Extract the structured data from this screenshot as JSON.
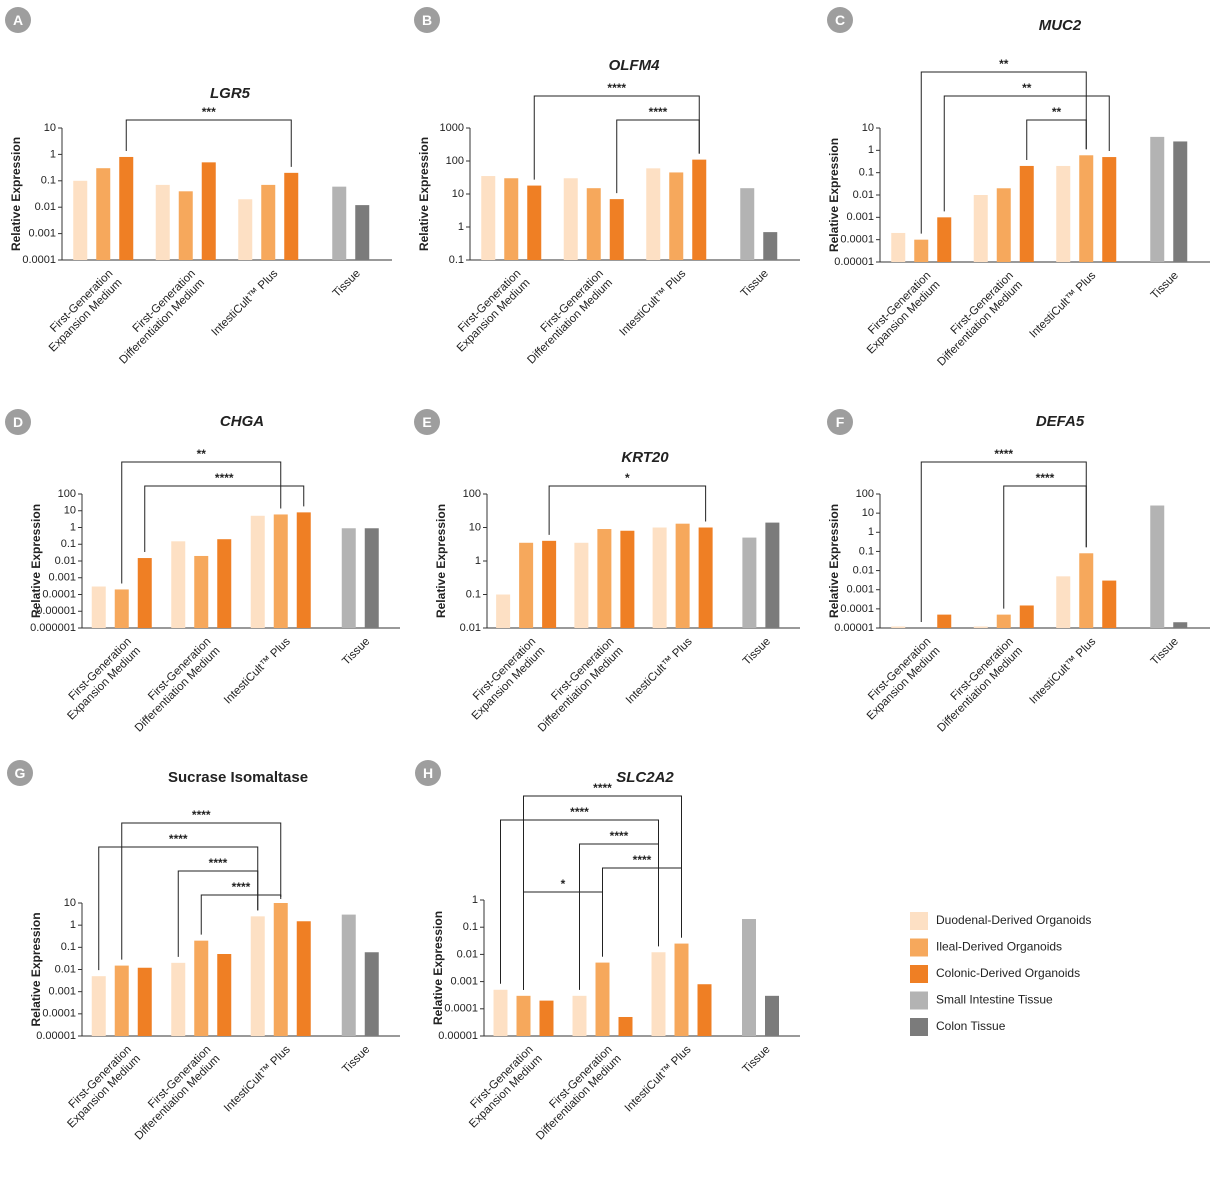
{
  "legend": [
    {
      "name": "Duodenal-Derived Organoids",
      "color": "#fde0c4"
    },
    {
      "name": "Ileal-Derived Organoids",
      "color": "#f6a85c"
    },
    {
      "name": "Colonic-Derived Organoids",
      "color": "#ef7f24"
    },
    {
      "name": "Small Intestine Tissue",
      "color": "#b3b3b3"
    },
    {
      "name": "Colon Tissue",
      "color": "#7b7b7b"
    }
  ],
  "chart_data": [
    {
      "type": "bar",
      "panel": "A",
      "title": "LGR5",
      "italic": true,
      "ylabel": "Relative Expression",
      "log_scale": true,
      "ylim": [
        0.0001,
        10
      ],
      "yticks": [
        0.0001,
        0.001,
        0.01,
        0.1,
        1,
        10
      ],
      "categories": [
        "First-Generation\nExpansion Medium",
        "First-Generation\nDifferentiation Medium",
        "IntestiCult™ Plus",
        "Tissue"
      ],
      "series": [
        {
          "values": [
            0.1,
            0.07,
            0.02,
            null
          ]
        },
        {
          "values": [
            0.3,
            0.04,
            0.07,
            null
          ]
        },
        {
          "values": [
            0.8,
            0.5,
            0.2,
            null
          ]
        },
        {
          "values": [
            null,
            null,
            null,
            0.06
          ]
        },
        {
          "values": [
            null,
            null,
            null,
            0.012
          ]
        }
      ],
      "significance": [
        {
          "label": "***",
          "between": [
            [
              0,
              2
            ],
            [
              2,
              2
            ]
          ]
        }
      ]
    },
    {
      "type": "bar",
      "panel": "B",
      "title": "OLFM4",
      "italic": true,
      "ylabel": "Relative Expression",
      "log_scale": true,
      "ylim": [
        0.1,
        1000
      ],
      "yticks": [
        0.1,
        1,
        10,
        100,
        1000
      ],
      "categories": [
        "First-Generation\nExpansion Medium",
        "First-Generation\nDifferentiation Medium",
        "IntestiCult™ Plus",
        "Tissue"
      ],
      "series": [
        {
          "values": [
            35,
            30,
            60,
            null
          ]
        },
        {
          "values": [
            30,
            15,
            45,
            null
          ]
        },
        {
          "values": [
            18,
            7,
            110,
            null
          ]
        },
        {
          "values": [
            null,
            null,
            null,
            15
          ]
        },
        {
          "values": [
            null,
            null,
            null,
            0.7
          ]
        }
      ],
      "significance": [
        {
          "label": "****",
          "between": [
            [
              0,
              2
            ],
            [
              2,
              2
            ]
          ]
        },
        {
          "label": "****",
          "between": [
            [
              1,
              2
            ],
            [
              2,
              2
            ]
          ]
        }
      ]
    },
    {
      "type": "bar",
      "panel": "C",
      "title": "MUC2",
      "italic": true,
      "ylabel": "Relative Expression",
      "log_scale": true,
      "ylim": [
        1e-05,
        10
      ],
      "yticks": [
        1e-05,
        0.0001,
        0.001,
        0.01,
        0.1,
        1,
        10
      ],
      "categories": [
        "First-Generation\nExpansion Medium",
        "First-Generation\nDifferentiation Medium",
        "IntestiCult™ Plus",
        "Tissue"
      ],
      "series": [
        {
          "values": [
            0.0002,
            0.01,
            0.2,
            null
          ]
        },
        {
          "values": [
            0.0001,
            0.02,
            0.6,
            null
          ]
        },
        {
          "values": [
            0.001,
            0.2,
            0.5,
            null
          ]
        },
        {
          "values": [
            null,
            null,
            null,
            4
          ]
        },
        {
          "values": [
            null,
            null,
            null,
            2.5
          ]
        }
      ],
      "significance": [
        {
          "label": "**",
          "between": [
            [
              0,
              1
            ],
            [
              2,
              1
            ]
          ]
        },
        {
          "label": "**",
          "between": [
            [
              0,
              2
            ],
            [
              2,
              2
            ]
          ]
        },
        {
          "label": "**",
          "between": [
            [
              1,
              2
            ],
            [
              2,
              1
            ]
          ]
        }
      ]
    },
    {
      "type": "bar",
      "panel": "D",
      "title": "CHGA",
      "italic": true,
      "ylabel": "Relative Expression",
      "log_scale": true,
      "ylim": [
        1e-06,
        100
      ],
      "yticks": [
        1e-06,
        1e-05,
        0.0001,
        0.001,
        0.01,
        0.1,
        1,
        10,
        100
      ],
      "categories": [
        "First-Generation\nExpansion Medium",
        "First-Generation\nDifferentiation Medium",
        "IntestiCult™ Plus",
        "Tissue"
      ],
      "series": [
        {
          "values": [
            0.0003,
            0.15,
            5,
            null
          ]
        },
        {
          "values": [
            0.0002,
            0.02,
            6,
            null
          ]
        },
        {
          "values": [
            0.015,
            0.2,
            8,
            null
          ]
        },
        {
          "values": [
            null,
            null,
            null,
            0.9
          ]
        },
        {
          "values": [
            null,
            null,
            null,
            0.9
          ]
        }
      ],
      "significance": [
        {
          "label": "**",
          "between": [
            [
              0,
              1
            ],
            [
              2,
              1
            ]
          ]
        },
        {
          "label": "****",
          "between": [
            [
              0,
              2
            ],
            [
              2,
              2
            ]
          ]
        }
      ]
    },
    {
      "type": "bar",
      "panel": "E",
      "title": "KRT20",
      "italic": true,
      "ylabel": "Relative Expression",
      "log_scale": true,
      "ylim": [
        0.01,
        100
      ],
      "yticks": [
        0.01,
        0.1,
        1,
        10,
        100
      ],
      "categories": [
        "First-Generation\nExpansion Medium",
        "First-Generation\nDifferentiation Medium",
        "IntestiCult™ Plus",
        "Tissue"
      ],
      "series": [
        {
          "values": [
            0.1,
            3.5,
            10,
            null
          ]
        },
        {
          "values": [
            3.5,
            9,
            13,
            null
          ]
        },
        {
          "values": [
            4,
            8,
            10,
            null
          ]
        },
        {
          "values": [
            null,
            null,
            null,
            5
          ]
        },
        {
          "values": [
            null,
            null,
            null,
            14
          ]
        }
      ],
      "significance": [
        {
          "label": "*",
          "between": [
            [
              0,
              2
            ],
            [
              2,
              2
            ]
          ]
        }
      ]
    },
    {
      "type": "bar",
      "panel": "F",
      "title": "DEFA5",
      "italic": true,
      "ylabel": "Relative Expression",
      "log_scale": true,
      "ylim": [
        1e-05,
        100
      ],
      "yticks": [
        1e-05,
        0.0001,
        0.001,
        0.01,
        0.1,
        1,
        10,
        100
      ],
      "categories": [
        "First-Generation\nExpansion Medium",
        "First-Generation\nDifferentiation Medium",
        "IntestiCult™ Plus",
        "Tissue"
      ],
      "series": [
        {
          "values": [
            1.2e-05,
            1.2e-05,
            0.005,
            null
          ]
        },
        {
          "values": [
            1e-05,
            5e-05,
            0.08,
            null
          ]
        },
        {
          "values": [
            5e-05,
            0.00015,
            0.003,
            null
          ]
        },
        {
          "values": [
            null,
            null,
            null,
            25
          ]
        },
        {
          "values": [
            null,
            null,
            null,
            2e-05
          ]
        }
      ],
      "significance": [
        {
          "label": "****",
          "between": [
            [
              0,
              1
            ],
            [
              2,
              1
            ]
          ]
        },
        {
          "label": "****",
          "between": [
            [
              1,
              1
            ],
            [
              2,
              1
            ]
          ]
        }
      ]
    },
    {
      "type": "bar",
      "panel": "G",
      "title": "Sucrase Isomaltase",
      "italic": false,
      "ylabel": "Relative Expression",
      "log_scale": true,
      "ylim": [
        1e-05,
        10
      ],
      "yticks": [
        1e-05,
        0.0001,
        0.001,
        0.01,
        0.1,
        1,
        10
      ],
      "categories": [
        "First-Generation\nExpansion Medium",
        "First-Generation\nDifferentiation Medium",
        "IntestiCult™ Plus",
        "Tissue"
      ],
      "series": [
        {
          "values": [
            0.005,
            0.02,
            2.5,
            null
          ]
        },
        {
          "values": [
            0.015,
            0.2,
            10,
            null
          ]
        },
        {
          "values": [
            0.012,
            0.05,
            1.5,
            null
          ]
        },
        {
          "values": [
            null,
            null,
            null,
            3
          ]
        },
        {
          "values": [
            null,
            null,
            null,
            0.06
          ]
        }
      ],
      "significance": [
        {
          "label": "****",
          "between": [
            [
              0,
              1
            ],
            [
              2,
              1
            ]
          ]
        },
        {
          "label": "****",
          "between": [
            [
              0,
              0
            ],
            [
              2,
              0
            ]
          ]
        },
        {
          "label": "****",
          "between": [
            [
              1,
              0
            ],
            [
              2,
              0
            ]
          ]
        },
        {
          "label": "****",
          "between": [
            [
              1,
              1
            ],
            [
              2,
              1
            ]
          ]
        }
      ]
    },
    {
      "type": "bar",
      "panel": "H",
      "title": "SLC2A2",
      "italic": true,
      "ylabel": "Relative Expression",
      "log_scale": true,
      "ylim": [
        1e-05,
        1
      ],
      "yticks": [
        1e-05,
        0.0001,
        0.001,
        0.01,
        0.1,
        1
      ],
      "categories": [
        "First-Generation\nExpansion Medium",
        "First-Generation\nDifferentiation Medium",
        "IntestiCult™ Plus",
        "Tissue"
      ],
      "series": [
        {
          "values": [
            0.0005,
            0.0003,
            0.012,
            null
          ]
        },
        {
          "values": [
            0.0003,
            0.005,
            0.025,
            null
          ]
        },
        {
          "values": [
            0.0002,
            5e-05,
            0.0008,
            null
          ]
        },
        {
          "values": [
            null,
            null,
            null,
            0.2
          ]
        },
        {
          "values": [
            null,
            null,
            null,
            0.0003
          ]
        }
      ],
      "significance": [
        {
          "label": "****",
          "between": [
            [
              0,
              1
            ],
            [
              2,
              1
            ]
          ]
        },
        {
          "label": "****",
          "between": [
            [
              0,
              0
            ],
            [
              2,
              0
            ]
          ]
        },
        {
          "label": "****",
          "between": [
            [
              1,
              0
            ],
            [
              2,
              0
            ]
          ]
        },
        {
          "label": "****",
          "between": [
            [
              1,
              1
            ],
            [
              2,
              1
            ]
          ]
        },
        {
          "label": "*",
          "between": [
            [
              0,
              1
            ],
            [
              1,
              1
            ]
          ]
        }
      ]
    }
  ]
}
